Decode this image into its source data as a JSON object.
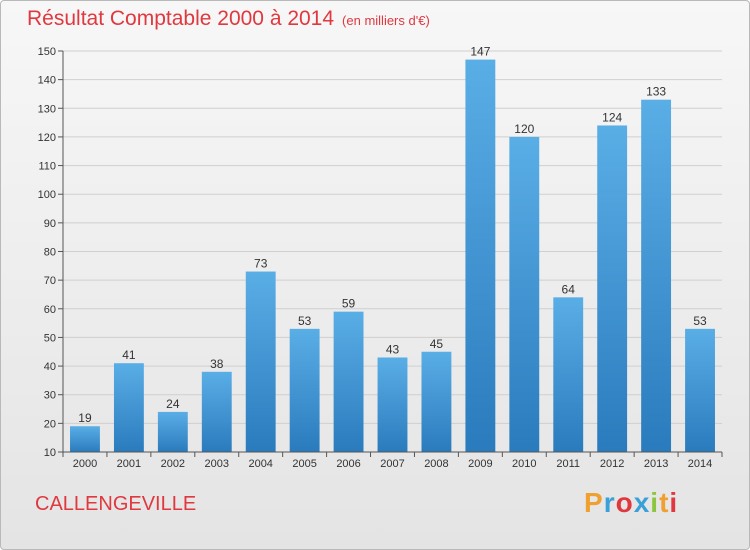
{
  "header": {
    "title": "Résultat Comptable 2000 à 2014",
    "unit": "(en milliers d'€)"
  },
  "commune": "CALLENGEVILLE",
  "logo": {
    "text": "Proxiti",
    "letters": [
      {
        "char": "P",
        "color": "#f0a030"
      },
      {
        "char": "r",
        "color": "#3aa0d8"
      },
      {
        "char": "o",
        "color": "#e0383f"
      },
      {
        "char": "x",
        "color": "#3aa0d8"
      },
      {
        "char": "i",
        "color": "#8cc63f"
      },
      {
        "char": "t",
        "color": "#f0a030"
      },
      {
        "char": "i",
        "color": "#e0383f"
      }
    ]
  },
  "colors": {
    "bar_light": "#5aaee6",
    "bar_dark": "#2a7bbd",
    "title_red": "#e0383f"
  },
  "chart_data": {
    "type": "bar",
    "categories": [
      "2000",
      "2001",
      "2002",
      "2003",
      "2004",
      "2005",
      "2006",
      "2007",
      "2008",
      "2009",
      "2010",
      "2011",
      "2012",
      "2013",
      "2014"
    ],
    "values": [
      19,
      41,
      24,
      38,
      73,
      53,
      59,
      43,
      45,
      147,
      120,
      64,
      124,
      133,
      53
    ],
    "ylim": [
      10,
      150
    ],
    "yticks": [
      10,
      20,
      30,
      40,
      50,
      60,
      70,
      80,
      90,
      100,
      110,
      120,
      130,
      140,
      150
    ],
    "grid": true,
    "title": "Résultat Comptable 2000 à 2014",
    "xlabel": "",
    "ylabel": ""
  }
}
